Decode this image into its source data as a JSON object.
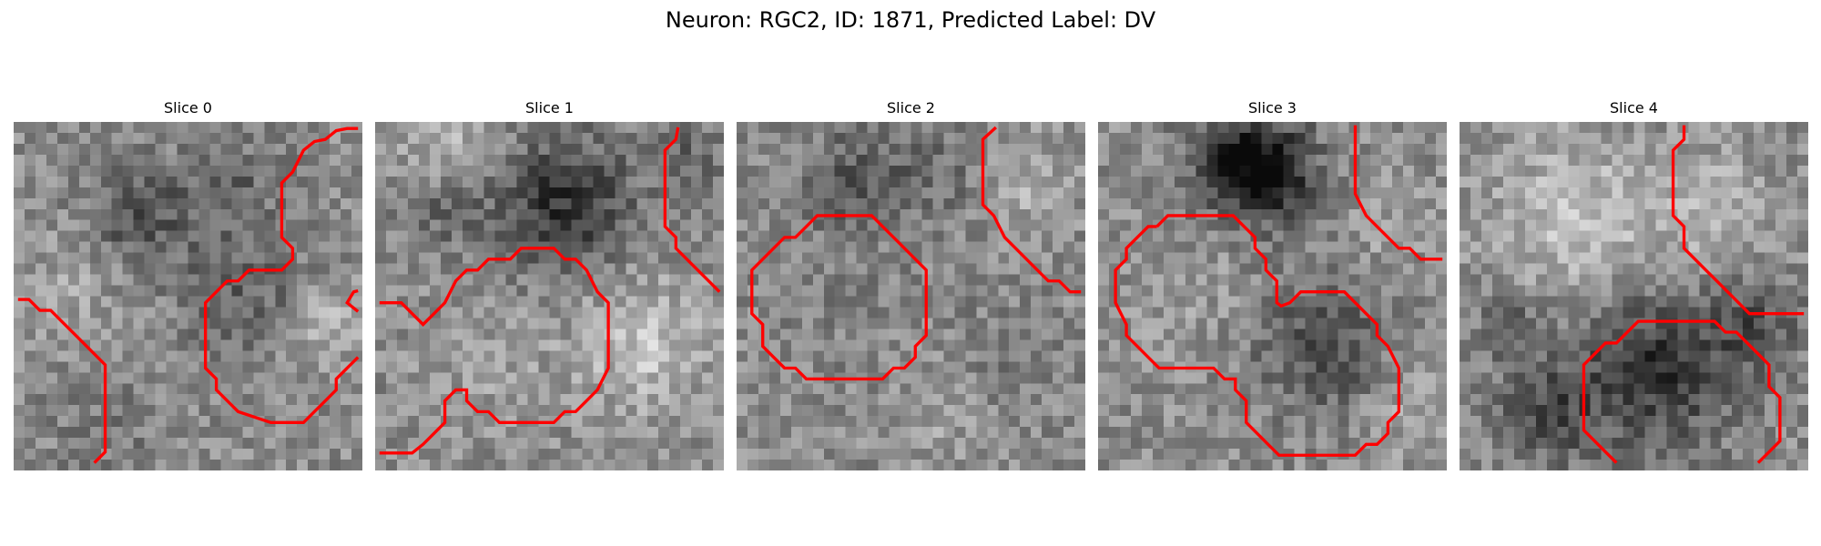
{
  "figure": {
    "title": "Neuron: RGC2, ID: 1871, Predicted Label: DV",
    "contour_color": "#ff0000"
  },
  "panels": [
    {
      "title": "Slice 0",
      "seed": 11
    },
    {
      "title": "Slice 1",
      "seed": 23
    },
    {
      "title": "Slice 2",
      "seed": 37
    },
    {
      "title": "Slice 3",
      "seed": 41
    },
    {
      "title": "Slice 4",
      "seed": 59
    }
  ]
}
